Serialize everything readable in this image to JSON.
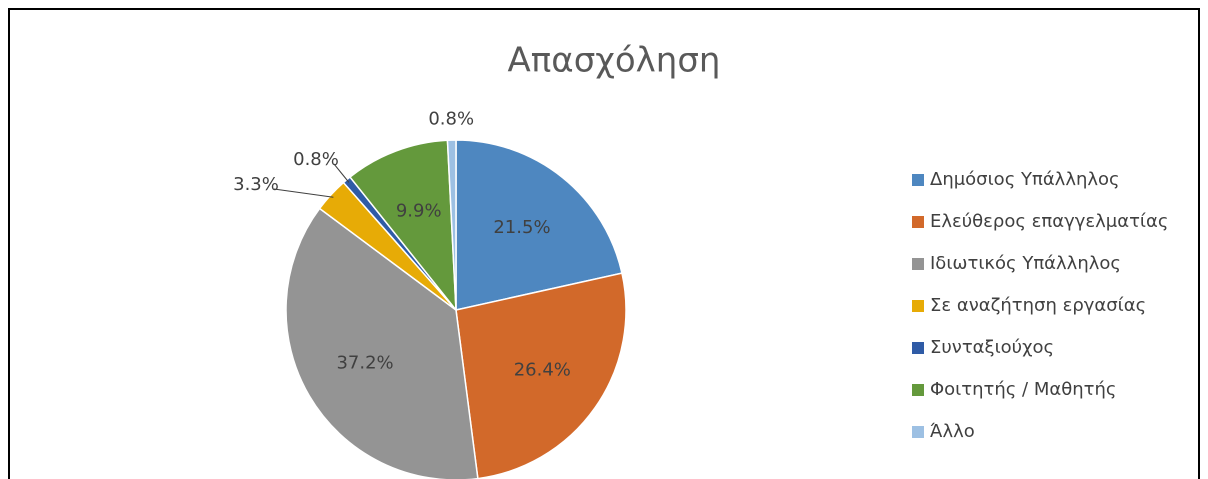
{
  "chart_data": {
    "type": "pie",
    "title": "Απασχόληση",
    "categories": [
      "Δημόσιος Υπάλληλος",
      "Ελεύθερος επαγγελματίας",
      "Ιδιωτικός Υπάλληλος",
      "Σε αναζήτηση εργασίας",
      "Συνταξιούχος",
      "Φοιτητής / Μαθητής",
      "Άλλο"
    ],
    "values": [
      21.5,
      26.4,
      37.2,
      3.3,
      0.8,
      9.9,
      0.8
    ],
    "value_labels": [
      "21.5%",
      "26.4%",
      "37.2%",
      "3.3%",
      "0.8%",
      "9.9%",
      "0.8%"
    ],
    "colors": [
      "#4e87c0",
      "#d2692a",
      "#949494",
      "#e7ab06",
      "#2f5ba6",
      "#64993c",
      "#9dc0e3"
    ],
    "legend": "right"
  }
}
